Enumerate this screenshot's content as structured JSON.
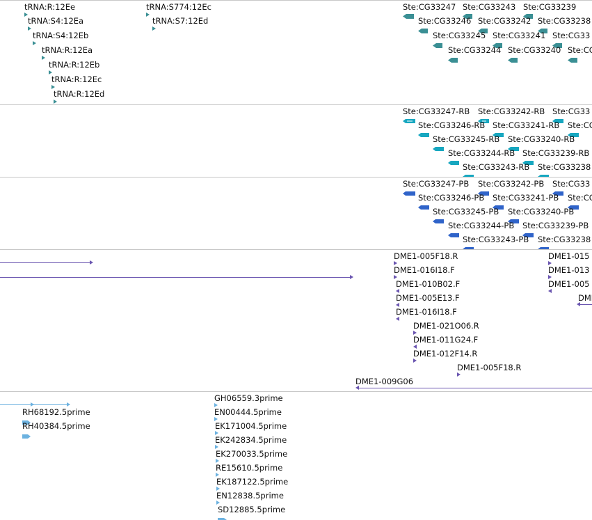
{
  "tracks": [
    {
      "id": "trna-ste",
      "color": "#3a8f94",
      "features": [
        {
          "label": "tRNA:R:12Ee",
          "dir": "right"
        },
        {
          "label": "tRNA:S4:12Ea",
          "dir": "right"
        },
        {
          "label": "tRNA:S4:12Eb",
          "dir": "right"
        },
        {
          "label": "tRNA:R:12Ea",
          "dir": "right"
        },
        {
          "label": "tRNA:R:12Eb",
          "dir": "right"
        },
        {
          "label": "tRNA:R:12Ec",
          "dir": "right"
        },
        {
          "label": "tRNA:R:12Ed",
          "dir": "right"
        },
        {
          "label": "tRNA:S774:12Ec",
          "dir": "right"
        },
        {
          "label": "tRNA:S7:12Ed",
          "dir": "right"
        },
        {
          "label": "Ste:CG33247",
          "dir": "left"
        },
        {
          "label": "Ste:CG33243",
          "dir": "left"
        },
        {
          "label": "Ste:CG33239",
          "dir": "left"
        },
        {
          "label": "Ste:CG33246",
          "dir": "left"
        },
        {
          "label": "Ste:CG33242",
          "dir": "left"
        },
        {
          "label": "Ste:CG33238",
          "dir": "left"
        },
        {
          "label": "Ste:CG33245",
          "dir": "left"
        },
        {
          "label": "Ste:CG33241",
          "dir": "left"
        },
        {
          "label": "Ste:CG33",
          "dir": "left"
        },
        {
          "label": "Ste:CG33244",
          "dir": "left"
        },
        {
          "label": "Ste:CG33240",
          "dir": "left"
        },
        {
          "label": "Ste:CG",
          "dir": "left"
        }
      ]
    },
    {
      "id": "transcripts-rb",
      "color": "#17a7c0",
      "features": [
        {
          "label": "Ste:CG33247-RB"
        },
        {
          "label": "Ste:CG33242-RB"
        },
        {
          "label": "Ste:CG33"
        },
        {
          "label": "Ste:CG33246-RB"
        },
        {
          "label": "Ste:CG33241-RB"
        },
        {
          "label": "Ste:CG"
        },
        {
          "label": "Ste:CG33245-RB"
        },
        {
          "label": "Ste:CG33240-RB"
        },
        {
          "label": "Ste:CG33244-RB"
        },
        {
          "label": "Ste:CG33239-RB"
        },
        {
          "label": "Ste:CG33243-RB"
        },
        {
          "label": "Ste:CG33238"
        }
      ]
    },
    {
      "id": "proteins-pb",
      "color": "#2f63c9",
      "features": [
        {
          "label": "Ste:CG33247-PB"
        },
        {
          "label": "Ste:CG33242-PB"
        },
        {
          "label": "Ste:CG33"
        },
        {
          "label": "Ste:CG33246-PB"
        },
        {
          "label": "Ste:CG33241-PB"
        },
        {
          "label": "Ste:CG"
        },
        {
          "label": "Ste:CG33245-PB"
        },
        {
          "label": "Ste:CG33240-PB"
        },
        {
          "label": "Ste:CG33244-PB"
        },
        {
          "label": "Ste:CG33239-PB"
        },
        {
          "label": "Ste:CG33243-PB"
        },
        {
          "label": "Ste:CG33238"
        }
      ]
    },
    {
      "id": "bac-ends",
      "color": "#6a55b0",
      "features": [
        {
          "label": "DME1-005F18.R"
        },
        {
          "label": "DME1-016I18.F"
        },
        {
          "label": "DME1-010B02.F"
        },
        {
          "label": "DME1-005E13.F"
        },
        {
          "label": "DME1-016I18.F"
        },
        {
          "label": "DME1-021O06.R"
        },
        {
          "label": "DME1-011G24.F"
        },
        {
          "label": "DME1-012F14.R"
        },
        {
          "label": "DME1-005F18.R"
        },
        {
          "label": "DME1-009G06"
        },
        {
          "label": "DME1-015"
        },
        {
          "label": "DME1-013"
        },
        {
          "label": "DME1-005"
        },
        {
          "label": "DMI"
        }
      ]
    },
    {
      "id": "est",
      "color": "#6cb2e0",
      "features": [
        {
          "label": "RH68192.5prime"
        },
        {
          "label": "RH40384.5prime"
        },
        {
          "label": "GH06559.3prime"
        },
        {
          "label": "EN00444.5prime"
        },
        {
          "label": "EK171004.5prime"
        },
        {
          "label": "EK242834.5prime"
        },
        {
          "label": "EK270033.5prime"
        },
        {
          "label": "RE15610.5prime"
        },
        {
          "label": "EK187122.5prime"
        },
        {
          "label": "EN12838.5prime"
        },
        {
          "label": "SD12885.5prime"
        }
      ]
    }
  ]
}
